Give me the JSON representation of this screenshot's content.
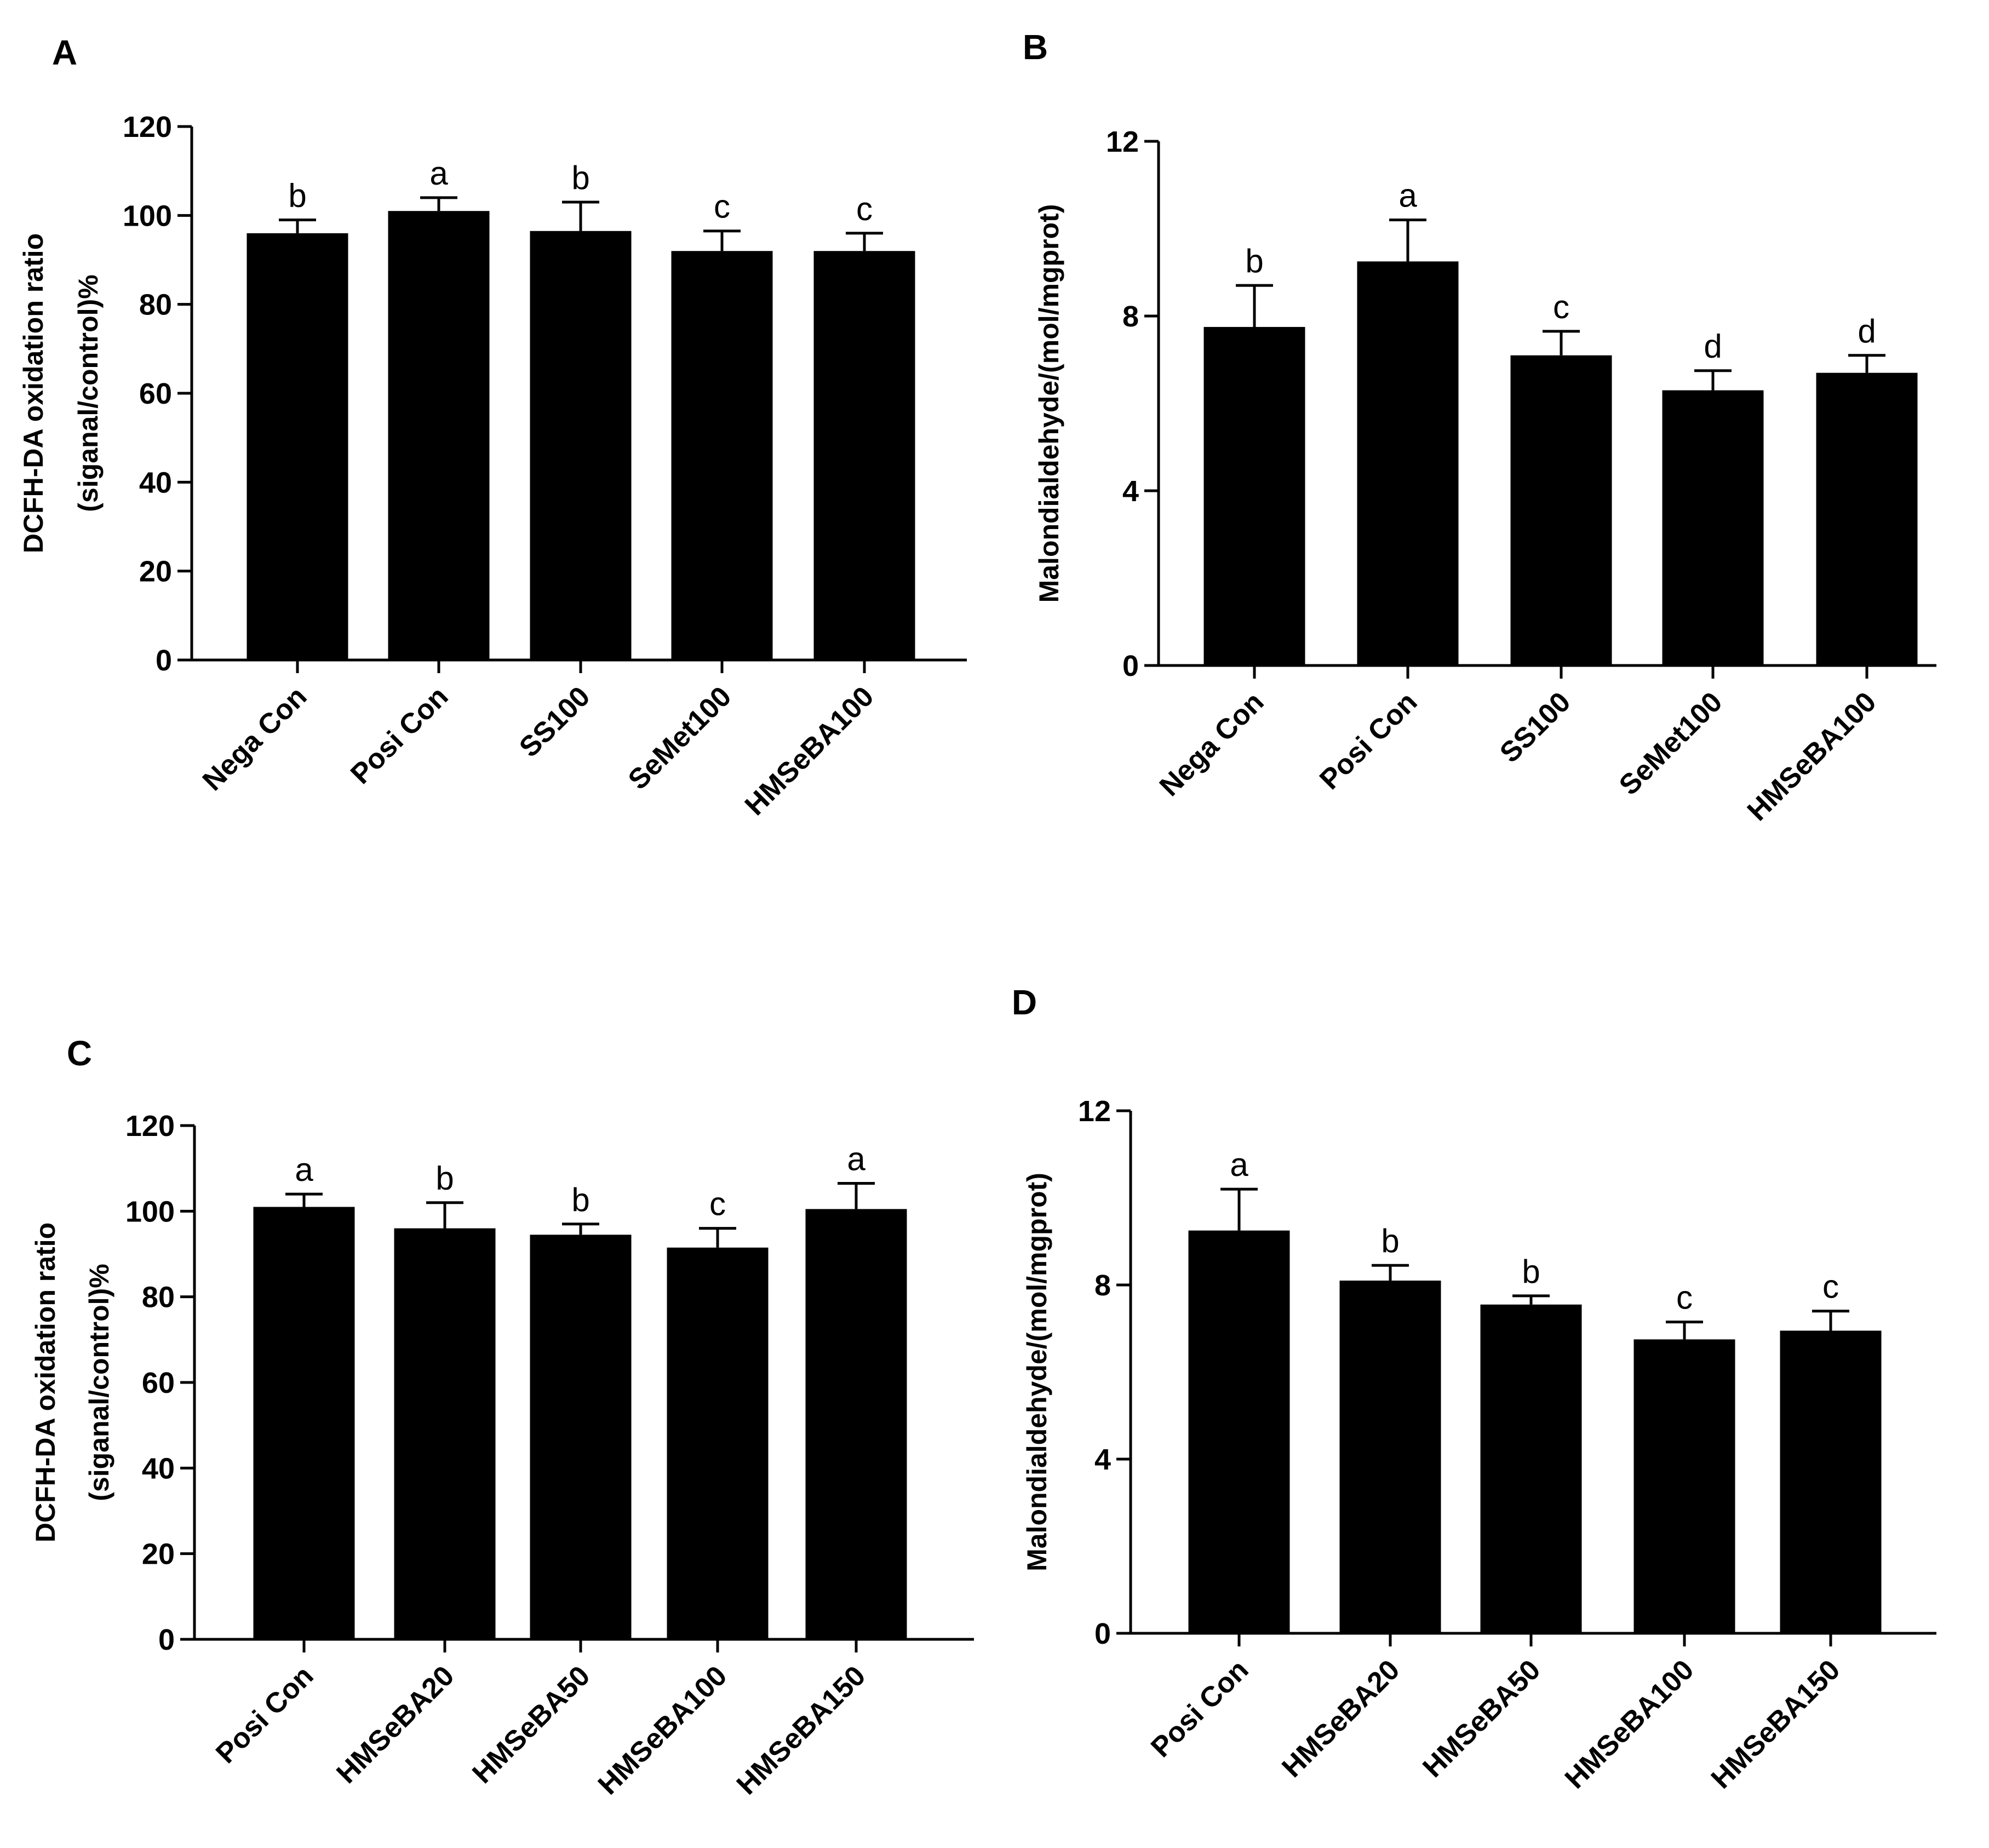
{
  "colors": {
    "bar": "#000000",
    "axis": "#000000",
    "background": "#ffffff"
  },
  "chart_data": [
    {
      "panel": "A",
      "type": "bar",
      "categories": [
        "Nega Con",
        "Posi Con",
        "SS100",
        "SeMet100",
        "HMSeBA100"
      ],
      "values": [
        96,
        101,
        96.5,
        92,
        92
      ],
      "errors": [
        3,
        3,
        6.5,
        4.5,
        4
      ],
      "significance": [
        "b",
        "a",
        "b",
        "c",
        "c"
      ],
      "ylabel_lines": [
        "DCFH-DA oxidation ratio",
        "(siganal/control)%"
      ],
      "ylim": [
        0,
        120
      ],
      "yticks": [
        0,
        20,
        40,
        60,
        80,
        100,
        120
      ],
      "ytick_labels": [
        "0",
        "20",
        "40",
        "60",
        "80",
        "100",
        "120"
      ]
    },
    {
      "panel": "B",
      "type": "bar",
      "categories": [
        "Nega Con",
        "Posi Con",
        "SS100",
        "SeMet100",
        "HMSeBA100"
      ],
      "values": [
        7.75,
        9.25,
        7.1,
        6.3,
        6.7
      ],
      "errors": [
        0.95,
        0.95,
        0.55,
        0.45,
        0.4
      ],
      "significance": [
        "b",
        "a",
        "c",
        "d",
        "d"
      ],
      "ylabel_lines": [
        "Malondialdehyde/(mol/mgprot)"
      ],
      "ylim": [
        0,
        12
      ],
      "yticks": [
        0,
        4,
        8,
        12
      ],
      "ytick_labels": [
        "0",
        "4",
        "8",
        "12"
      ]
    },
    {
      "panel": "C",
      "type": "bar",
      "categories": [
        "Posi Con",
        "HMSeBA20",
        "HMSeBA50",
        "HMSeBA100",
        "HMSeBA150"
      ],
      "values": [
        101,
        96,
        94.5,
        91.5,
        100.5
      ],
      "errors": [
        3,
        6,
        2.5,
        4.5,
        6
      ],
      "significance": [
        "a",
        "b",
        "b",
        "c",
        "a"
      ],
      "ylabel_lines": [
        "DCFH-DA oxidation ratio",
        "(siganal/control)%"
      ],
      "ylim": [
        0,
        120
      ],
      "yticks": [
        0,
        20,
        40,
        60,
        80,
        100,
        120
      ],
      "ytick_labels": [
        "0",
        "20",
        "40",
        "60",
        "80",
        "100",
        "120"
      ]
    },
    {
      "panel": "D",
      "type": "bar",
      "categories": [
        "Posi Con",
        "HMSeBA20",
        "HMSeBA50",
        "HMSeBA100",
        "HMSeBA150"
      ],
      "values": [
        9.25,
        8.1,
        7.55,
        6.75,
        6.95
      ],
      "errors": [
        0.95,
        0.35,
        0.2,
        0.4,
        0.45
      ],
      "significance": [
        "a",
        "b",
        "b",
        "c",
        "c"
      ],
      "ylabel_lines": [
        "Malondialdehyde/(mol/mgprot)"
      ],
      "ylim": [
        0,
        12
      ],
      "yticks": [
        0,
        4,
        8,
        12
      ],
      "ytick_labels": [
        "0",
        "4",
        "8",
        "12"
      ]
    }
  ]
}
